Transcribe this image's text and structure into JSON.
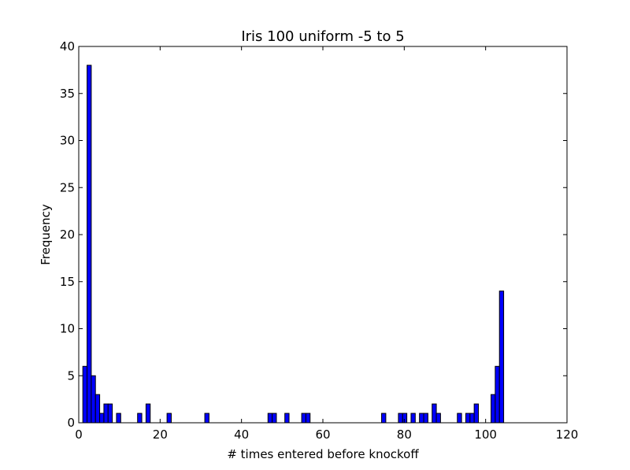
{
  "chart_data": {
    "type": "bar",
    "title": "Iris 100 uniform -5 to 5",
    "xlabel": "# times entered before knockoff",
    "ylabel": "Frequency",
    "xlim": [
      0,
      120
    ],
    "ylim": [
      0,
      40
    ],
    "x_ticks": [
      0,
      20,
      40,
      60,
      80,
      100,
      120
    ],
    "y_ticks": [
      0,
      5,
      10,
      15,
      20,
      25,
      30,
      35,
      40
    ],
    "bin_width": 1.035,
    "bar_color": "#0000ff",
    "edge_color": "#000000",
    "grid": false,
    "bins": [
      {
        "x": 1.0,
        "count": 6
      },
      {
        "x": 2.04,
        "count": 38
      },
      {
        "x": 3.07,
        "count": 5
      },
      {
        "x": 4.11,
        "count": 3
      },
      {
        "x": 5.14,
        "count": 1
      },
      {
        "x": 6.18,
        "count": 2
      },
      {
        "x": 7.21,
        "count": 2
      },
      {
        "x": 9.28,
        "count": 1
      },
      {
        "x": 14.46,
        "count": 1
      },
      {
        "x": 16.53,
        "count": 2
      },
      {
        "x": 21.7,
        "count": 1
      },
      {
        "x": 30.98,
        "count": 1
      },
      {
        "x": 46.51,
        "count": 1
      },
      {
        "x": 47.54,
        "count": 1
      },
      {
        "x": 50.65,
        "count": 1
      },
      {
        "x": 54.79,
        "count": 1
      },
      {
        "x": 55.82,
        "count": 1
      },
      {
        "x": 74.43,
        "count": 1
      },
      {
        "x": 78.57,
        "count": 1
      },
      {
        "x": 79.6,
        "count": 1
      },
      {
        "x": 81.67,
        "count": 1
      },
      {
        "x": 83.74,
        "count": 1
      },
      {
        "x": 84.78,
        "count": 1
      },
      {
        "x": 86.85,
        "count": 2
      },
      {
        "x": 87.88,
        "count": 1
      },
      {
        "x": 93.05,
        "count": 1
      },
      {
        "x": 95.12,
        "count": 1
      },
      {
        "x": 96.16,
        "count": 1
      },
      {
        "x": 97.19,
        "count": 2
      },
      {
        "x": 101.33,
        "count": 3
      },
      {
        "x": 102.36,
        "count": 6
      },
      {
        "x": 103.4,
        "count": 14
      }
    ]
  }
}
